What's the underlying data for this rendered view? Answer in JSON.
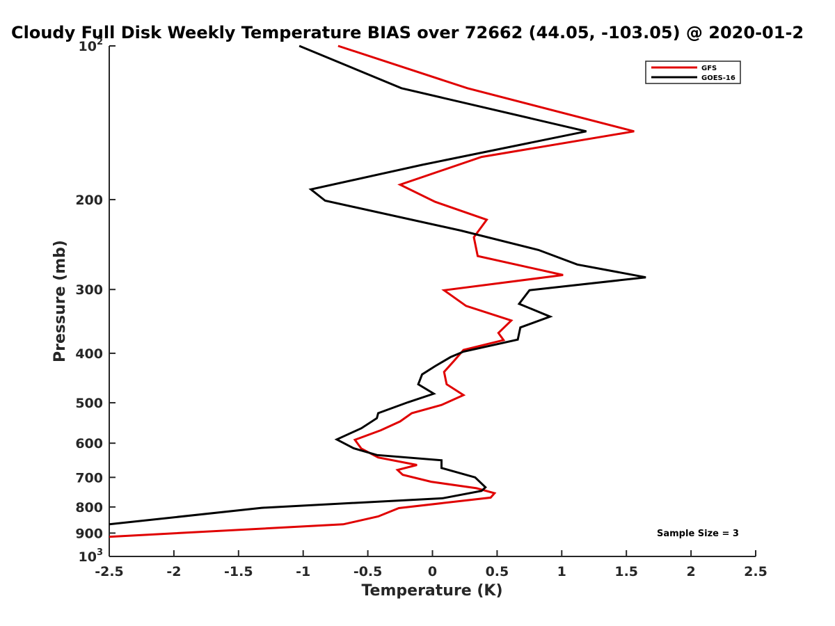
{
  "chart_data": {
    "type": "line",
    "title": "Cloudy Full Disk Weekly Temperature BIAS over 72662 (44.05, -103.05) @ 2020-01-2",
    "xlabel": "Temperature (K)",
    "ylabel": "Pressure (mb)",
    "xlim": [
      -2.5,
      2.5
    ],
    "ylim": [
      100,
      1000
    ],
    "y_scale": "log",
    "y_direction": "reversed",
    "grid": false,
    "legend_position": "top-right",
    "x_ticks": [
      -2.5,
      -2,
      -1.5,
      -1,
      -0.5,
      0,
      0.5,
      1,
      1.5,
      2,
      2.5
    ],
    "x_tick_labels": [
      "-2.5",
      "-2",
      "-1.5",
      "-1",
      "-0.5",
      "0",
      "0.5",
      "1",
      "1.5",
      "2",
      "2.5"
    ],
    "y_ticks": [
      100,
      200,
      300,
      400,
      500,
      600,
      700,
      800,
      900,
      1000
    ],
    "y_tick_labels": [
      {
        "base": "10",
        "exp": "2"
      },
      {
        "base": "200",
        "exp": ""
      },
      {
        "base": "300",
        "exp": ""
      },
      {
        "base": "400",
        "exp": ""
      },
      {
        "base": "500",
        "exp": ""
      },
      {
        "base": "600",
        "exp": ""
      },
      {
        "base": "700",
        "exp": ""
      },
      {
        "base": "800",
        "exp": ""
      },
      {
        "base": "900",
        "exp": ""
      },
      {
        "base": "10",
        "exp": "3"
      }
    ],
    "annotation": "Sample Size = 3",
    "series": [
      {
        "name": "GFS",
        "color": "#e00000",
        "points": [
          [
            -0.73,
            100
          ],
          [
            0.27,
            121
          ],
          [
            1.56,
            147
          ],
          [
            0.38,
            165
          ],
          [
            -0.25,
            187
          ],
          [
            0.02,
            202
          ],
          [
            0.42,
            219
          ],
          [
            0.32,
            237
          ],
          [
            0.35,
            258
          ],
          [
            1.01,
            281
          ],
          [
            0.09,
            301
          ],
          [
            0.26,
            323
          ],
          [
            0.61,
            345
          ],
          [
            0.51,
            365
          ],
          [
            0.55,
            377
          ],
          [
            0.24,
            394
          ],
          [
            0.17,
            413
          ],
          [
            0.09,
            435
          ],
          [
            0.11,
            460
          ],
          [
            0.24,
            483
          ],
          [
            0.07,
            505
          ],
          [
            -0.16,
            524
          ],
          [
            -0.25,
            544
          ],
          [
            -0.4,
            566
          ],
          [
            -0.6,
            591
          ],
          [
            -0.55,
            615
          ],
          [
            -0.42,
            640
          ],
          [
            -0.12,
            662
          ],
          [
            -0.27,
            677
          ],
          [
            -0.23,
            692
          ],
          [
            -0.01,
            714
          ],
          [
            0.34,
            735
          ],
          [
            0.48,
            752
          ],
          [
            0.45,
            767
          ],
          [
            -0.26,
            804
          ],
          [
            -0.42,
            835
          ],
          [
            -0.69,
            865
          ],
          [
            -2.5,
            915
          ]
        ]
      },
      {
        "name": "GOES-16",
        "color": "#000000",
        "points": [
          [
            -1.03,
            100
          ],
          [
            -0.24,
            121
          ],
          [
            1.19,
            147
          ],
          [
            -0.08,
            171
          ],
          [
            -0.94,
            191
          ],
          [
            -0.83,
            201
          ],
          [
            0.22,
            230
          ],
          [
            0.82,
            251
          ],
          [
            1.12,
            268
          ],
          [
            1.65,
            284
          ],
          [
            0.75,
            301
          ],
          [
            0.67,
            320
          ],
          [
            0.91,
            339
          ],
          [
            0.68,
            356
          ],
          [
            0.66,
            376
          ],
          [
            0.24,
            397
          ],
          [
            0.14,
            407
          ],
          [
            0.02,
            424
          ],
          [
            -0.08,
            440
          ],
          [
            -0.11,
            460
          ],
          [
            0.01,
            480
          ],
          [
            -0.19,
            499
          ],
          [
            -0.42,
            524
          ],
          [
            -0.43,
            536
          ],
          [
            -0.55,
            561
          ],
          [
            -0.74,
            590
          ],
          [
            -0.61,
            614
          ],
          [
            -0.43,
            633
          ],
          [
            0.07,
            648
          ],
          [
            0.07,
            671
          ],
          [
            0.33,
            700
          ],
          [
            0.41,
            732
          ],
          [
            0.38,
            744
          ],
          [
            0.08,
            769
          ],
          [
            -1.32,
            803
          ],
          [
            -2.5,
            865
          ]
        ]
      }
    ]
  }
}
